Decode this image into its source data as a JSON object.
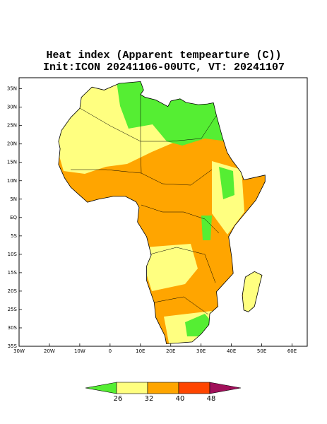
{
  "map": {
    "title": "Heat index (Apparent tempearture (C))",
    "subtitle": "Init:ICON 20241106-00UTC, VT: 20241107",
    "lon_range": [
      -30,
      65
    ],
    "lat_range": [
      -35,
      38
    ],
    "lon_ticks": [
      {
        "value": -30,
        "label": "30W"
      },
      {
        "value": -20,
        "label": "20W"
      },
      {
        "value": -10,
        "label": "10W"
      },
      0,
      {
        "value": 10,
        "label": "10E"
      },
      {
        "value": 20,
        "label": "20E"
      },
      {
        "value": 30,
        "label": "30E"
      },
      {
        "value": 40,
        "label": "40E"
      },
      {
        "value": 50,
        "label": "50E"
      },
      {
        "value": 60,
        "label": "60E"
      }
    ],
    "lat_ticks": [
      {
        "value": -35,
        "label": "35S"
      },
      {
        "value": -30,
        "label": "30S"
      },
      {
        "value": -25,
        "label": "25S"
      },
      {
        "value": -20,
        "label": "20S"
      },
      {
        "value": -15,
        "label": "15S"
      },
      {
        "value": -10,
        "label": "10S"
      },
      {
        "value": -5,
        "label": "5S"
      },
      {
        "value": 0,
        "label": "EQ"
      },
      {
        "value": 5,
        "label": "5N"
      },
      {
        "value": 10,
        "label": "10N"
      },
      {
        "value": 15,
        "label": "15N"
      },
      {
        "value": 20,
        "label": "20N"
      },
      {
        "value": 25,
        "label": "25N"
      },
      {
        "value": 30,
        "label": "30N"
      },
      {
        "value": 35,
        "label": "35N"
      }
    ],
    "colorbar": {
      "levels": [
        26,
        32,
        40,
        48
      ],
      "colors": [
        "#55ee33",
        "#ffff80",
        "#ffa500",
        "#ff4500",
        "#a0105a"
      ]
    }
  }
}
